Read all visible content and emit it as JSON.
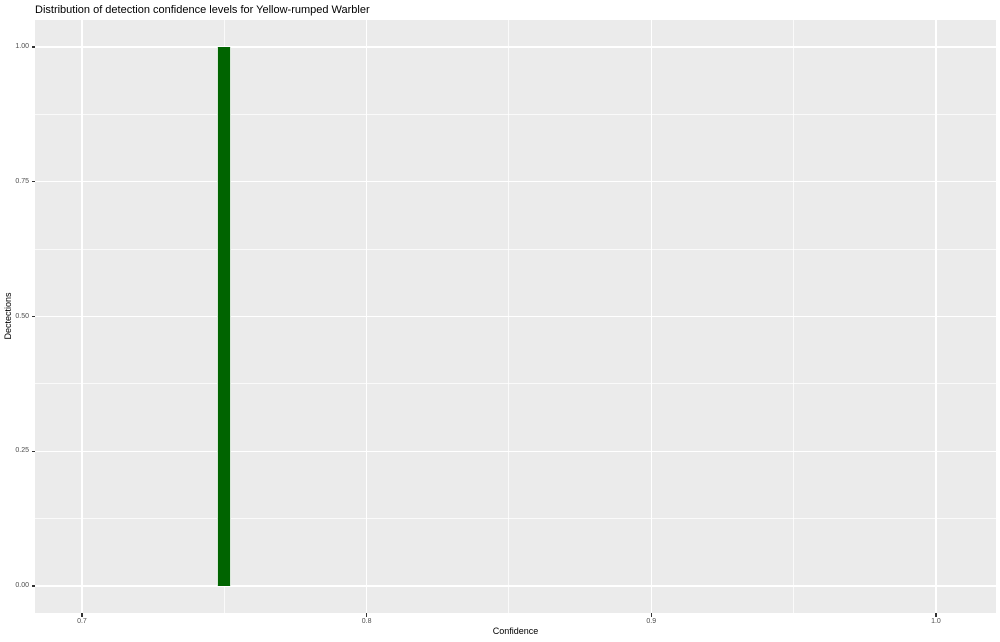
{
  "chart_data": {
    "type": "bar",
    "title": "Distribution of detection confidence levels for Yellow-rumped Warbler",
    "xlabel": "Confidence",
    "ylabel": "Dectections",
    "bars": [
      {
        "x": 0.75,
        "count": 1,
        "bin_width": 0.005
      }
    ],
    "bar_color": "#006400",
    "panel_bg": "#EBEBEB",
    "grid_color": "#FFFFFF",
    "tick_mark_color": "#333333",
    "tick_label_color": "#4D4D4D",
    "x_ticks": {
      "values": [
        0.7,
        0.8,
        0.9,
        1.0
      ],
      "labels": [
        "0.7",
        "0.8",
        "0.9",
        "1.0"
      ],
      "minor": [
        0.75,
        0.85,
        0.95
      ]
    },
    "y_ticks": {
      "values": [
        0,
        0.25,
        0.5,
        0.75,
        1.0
      ],
      "labels": [
        "0.00",
        "0.25",
        "0.50",
        "0.75",
        "1.00"
      ],
      "minor": [
        0.125,
        0.375,
        0.625,
        0.875
      ]
    },
    "xlim": [
      0.6835,
      1.0211
    ],
    "ylim": [
      -0.05,
      1.05
    ],
    "grid": true,
    "legend": "none"
  }
}
